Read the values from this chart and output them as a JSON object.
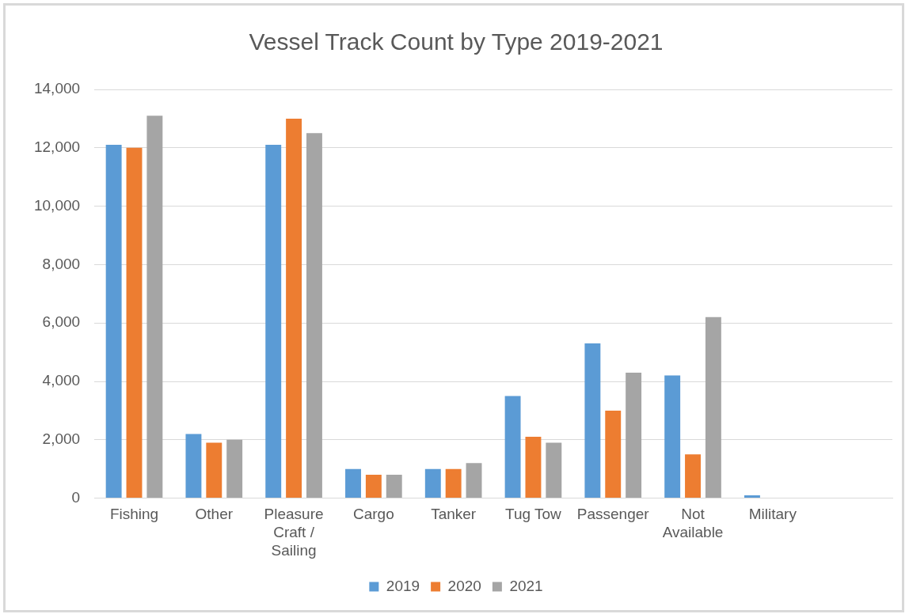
{
  "chart_data": {
    "type": "bar",
    "title": "Vessel Track Count by Type 2019-2021",
    "categories": [
      "Fishing",
      "Other",
      "Pleasure Craft / Sailing",
      "Cargo",
      "Tanker",
      "Tug Tow",
      "Passenger",
      "Not Available",
      "Military",
      null
    ],
    "series": [
      {
        "name": "2019",
        "color": "#5b9bd5",
        "values": [
          12100,
          2200,
          12100,
          1000,
          1000,
          3500,
          5300,
          4200,
          100,
          null
        ]
      },
      {
        "name": "2020",
        "color": "#ed7d31",
        "values": [
          12000,
          1900,
          13000,
          800,
          1000,
          2100,
          3000,
          1500,
          null,
          null
        ]
      },
      {
        "name": "2021",
        "color": "#a5a5a5",
        "values": [
          13100,
          2000,
          12500,
          800,
          1200,
          1900,
          4300,
          6200,
          null,
          null
        ]
      }
    ],
    "ylim": [
      0,
      14000
    ],
    "yticks": [
      0,
      {
        "value": 2000,
        "label": "2,000"
      },
      {
        "value": 4000,
        "label": "4,000"
      },
      {
        "value": 6000,
        "label": "6,000"
      },
      {
        "value": 8000,
        "label": "8,000"
      },
      {
        "value": 10000,
        "label": "10,000"
      },
      {
        "value": 12000,
        "label": "12,000"
      },
      {
        "value": 14000,
        "label": "14,000"
      }
    ],
    "grid": "y",
    "legend": "bottom"
  }
}
